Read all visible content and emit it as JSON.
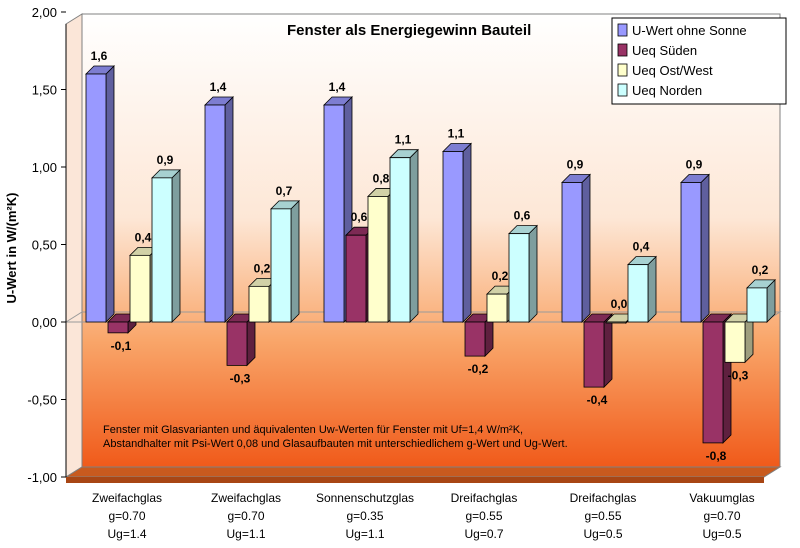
{
  "chart_data": {
    "type": "bar",
    "title": "Fenster als Energiegewinn Bauteil",
    "ylabel": "U-Wert in W/(m²K)",
    "xlabel": "",
    "ylim": [
      -1.0,
      2.0
    ],
    "yticks": [
      "2,00",
      "1,50",
      "1,00",
      "0,50",
      "0,00",
      "-0,50",
      "-1,00"
    ],
    "ytick_values": [
      2.0,
      1.5,
      1.0,
      0.5,
      0.0,
      -0.5,
      -1.0
    ],
    "legend_position": "top-right",
    "grid": false,
    "categories": [
      {
        "lines": [
          "Zweifachglas",
          "g=0.70",
          "Ug=1.4"
        ]
      },
      {
        "lines": [
          "Zweifachglas",
          "g=0.70",
          "Ug=1.1"
        ]
      },
      {
        "lines": [
          "Sonnenschutzglas",
          "g=0.35",
          "Ug=1.1"
        ]
      },
      {
        "lines": [
          "Dreifachglas",
          "g=0.55",
          "Ug=0.7"
        ]
      },
      {
        "lines": [
          "Dreifachglas",
          "g=0.55",
          "Ug=0.5"
        ]
      },
      {
        "lines": [
          "Vakuumglas",
          "g=0.70",
          "Ug=0.5"
        ]
      }
    ],
    "series": [
      {
        "name": "U-Wert ohne Sonne",
        "color": "#9999FF",
        "values": [
          1.6,
          1.4,
          1.4,
          1.1,
          0.9,
          0.9
        ],
        "labels": [
          "1,6",
          "1,4",
          "1,4",
          "1,1",
          "0,9",
          "0,9"
        ]
      },
      {
        "name": "Ueq Süden",
        "color": "#993366",
        "values": [
          -0.07,
          -0.28,
          0.56,
          -0.22,
          -0.42,
          -0.78
        ],
        "labels": [
          "-0,1",
          "-0,3",
          "0,6",
          "-0,2",
          "-0,4",
          "-0,8"
        ]
      },
      {
        "name": "Ueq Ost/West",
        "color": "#FFFFCC",
        "values": [
          0.43,
          0.23,
          0.81,
          0.18,
          0.0,
          -0.26
        ],
        "labels": [
          "0,4",
          "0,2",
          "0,8",
          "0,2",
          "0,0",
          "-0,3"
        ]
      },
      {
        "name": "Ueq Norden",
        "color": "#CCFFFF",
        "values": [
          0.93,
          0.73,
          1.06,
          0.57,
          0.37,
          0.22
        ],
        "labels": [
          "0,9",
          "0,7",
          "1,1",
          "0,6",
          "0,4",
          "0,2"
        ]
      }
    ],
    "annotation": [
      "Fenster mit Glasvarianten und äquivalenten Uw-Werten für Fenster mit Uf=1,4 W/m²K,",
      "Abstandhalter mit Psi-Wert 0,08 und Glasaufbauten mit unterschiedlichem g-Wert und Ug-Wert."
    ]
  }
}
